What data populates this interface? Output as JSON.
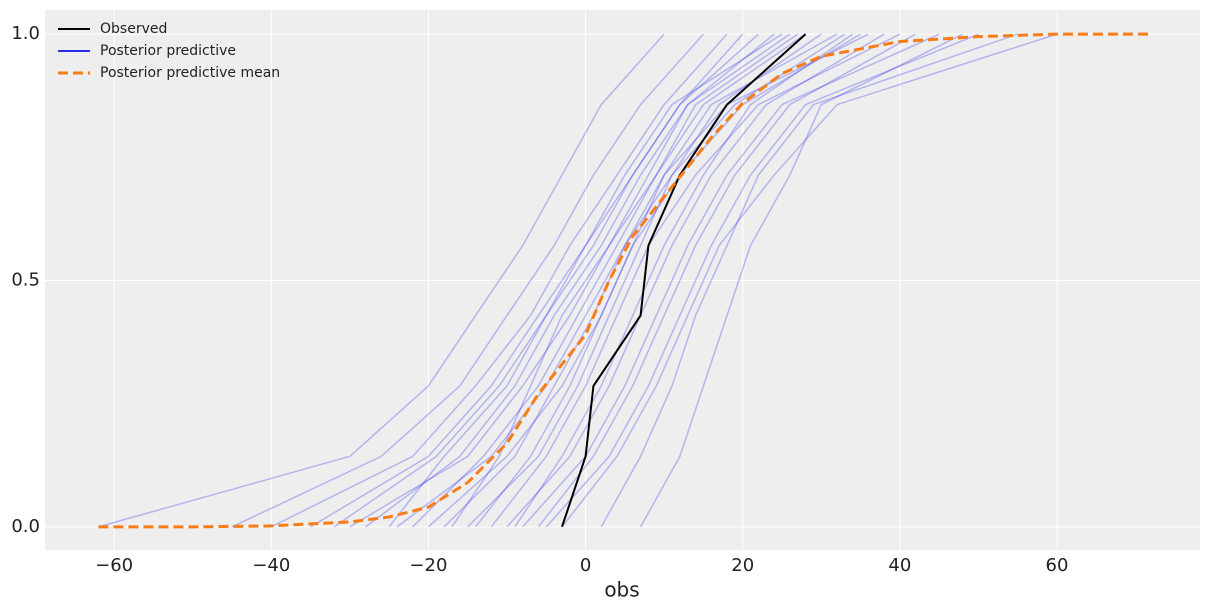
{
  "chart_data": {
    "type": "ecdf",
    "x_label": "obs",
    "xlim": [
      -68.8,
      78.2
    ],
    "ylim": [
      -0.047,
      1.049
    ],
    "xticks": [
      {
        "value": -60,
        "label": "−60"
      },
      {
        "value": -40,
        "label": "−40"
      },
      {
        "value": -20,
        "label": "−20"
      },
      0,
      20,
      40,
      60
    ],
    "yticks": [
      {
        "value": 0,
        "label": "0.0"
      },
      {
        "value": 0.5,
        "label": "0.5"
      },
      {
        "value": 1,
        "label": "1.0"
      }
    ],
    "grid": true,
    "legend": "upper left",
    "series": [
      {
        "name": "Observed",
        "color": "#000000",
        "x": [
          -3,
          0,
          1,
          7,
          8,
          12,
          18,
          28
        ],
        "values": [
          0,
          0.143,
          0.286,
          0.429,
          0.571,
          0.714,
          0.857,
          1.0
        ]
      },
      {
        "name": "Posterior predictive",
        "color": "#2a2eec",
        "alpha": 0.3,
        "values": [
          0,
          0.143,
          0.286,
          0.429,
          0.571,
          0.714,
          0.857,
          1.0
        ],
        "samples": [
          [
            -30,
            -15,
            -8,
            -2,
            3,
            9,
            15,
            28
          ],
          [
            -20,
            -10,
            -3,
            2,
            6,
            12,
            20,
            35
          ],
          [
            -12,
            -5,
            0,
            4,
            8,
            14,
            22,
            40
          ],
          [
            -25,
            -18,
            -10,
            -5,
            1,
            6,
            12,
            22
          ],
          [
            -8,
            0,
            5,
            9,
            13,
            18,
            25,
            45
          ],
          [
            -40,
            -22,
            -14,
            -7,
            -2,
            4,
            10,
            18
          ],
          [
            -15,
            -6,
            -1,
            3,
            7,
            11,
            17,
            30
          ],
          [
            -5,
            3,
            8,
            12,
            16,
            21,
            28,
            50
          ],
          [
            -35,
            -20,
            -12,
            -6,
            0,
            5,
            11,
            25
          ],
          [
            -18,
            -9,
            -4,
            1,
            5,
            10,
            16,
            32
          ],
          [
            -10,
            -2,
            3,
            7,
            11,
            16,
            23,
            38
          ],
          [
            -28,
            -16,
            -9,
            -4,
            2,
            7,
            13,
            24
          ],
          [
            2,
            7,
            11,
            14,
            18,
            22,
            29,
            55
          ],
          [
            -45,
            -26,
            -16,
            -10,
            -4,
            1,
            7,
            15
          ],
          [
            -22,
            -13,
            -6,
            -1,
            4,
            9,
            14,
            27
          ],
          [
            -14,
            -7,
            -2,
            2,
            6,
            10,
            18,
            36
          ],
          [
            -6,
            1,
            6,
            10,
            14,
            19,
            26,
            42
          ],
          [
            -32,
            -19,
            -11,
            -5,
            0,
            6,
            12,
            20
          ],
          [
            -24,
            -12,
            -5,
            0,
            5,
            11,
            19,
            33
          ],
          [
            -9,
            -3,
            2,
            6,
            10,
            15,
            21,
            34
          ],
          [
            7,
            12,
            15,
            18,
            21,
            26,
            30,
            48
          ],
          [
            -62,
            -30,
            -20,
            -14,
            -8,
            -3,
            2,
            10
          ],
          [
            -3,
            4,
            9,
            13,
            17,
            24,
            32,
            60
          ],
          [
            -17,
            -11,
            -7,
            -3,
            3,
            8,
            13,
            26
          ]
        ]
      },
      {
        "name": "Posterior predictive mean",
        "color": "#fa7c17",
        "dashed": true,
        "x": [
          -62,
          -50,
          -40,
          -30,
          -25,
          -20,
          -15,
          -10,
          -6,
          -3,
          0,
          3,
          6,
          10,
          13,
          16,
          20,
          25,
          30,
          40,
          50,
          60,
          72
        ],
        "values": [
          0,
          0,
          0.002,
          0.01,
          0.02,
          0.04,
          0.09,
          0.17,
          0.27,
          0.33,
          0.39,
          0.5,
          0.59,
          0.67,
          0.73,
          0.79,
          0.86,
          0.92,
          0.955,
          0.985,
          0.995,
          1.0,
          1.0
        ]
      }
    ]
  }
}
